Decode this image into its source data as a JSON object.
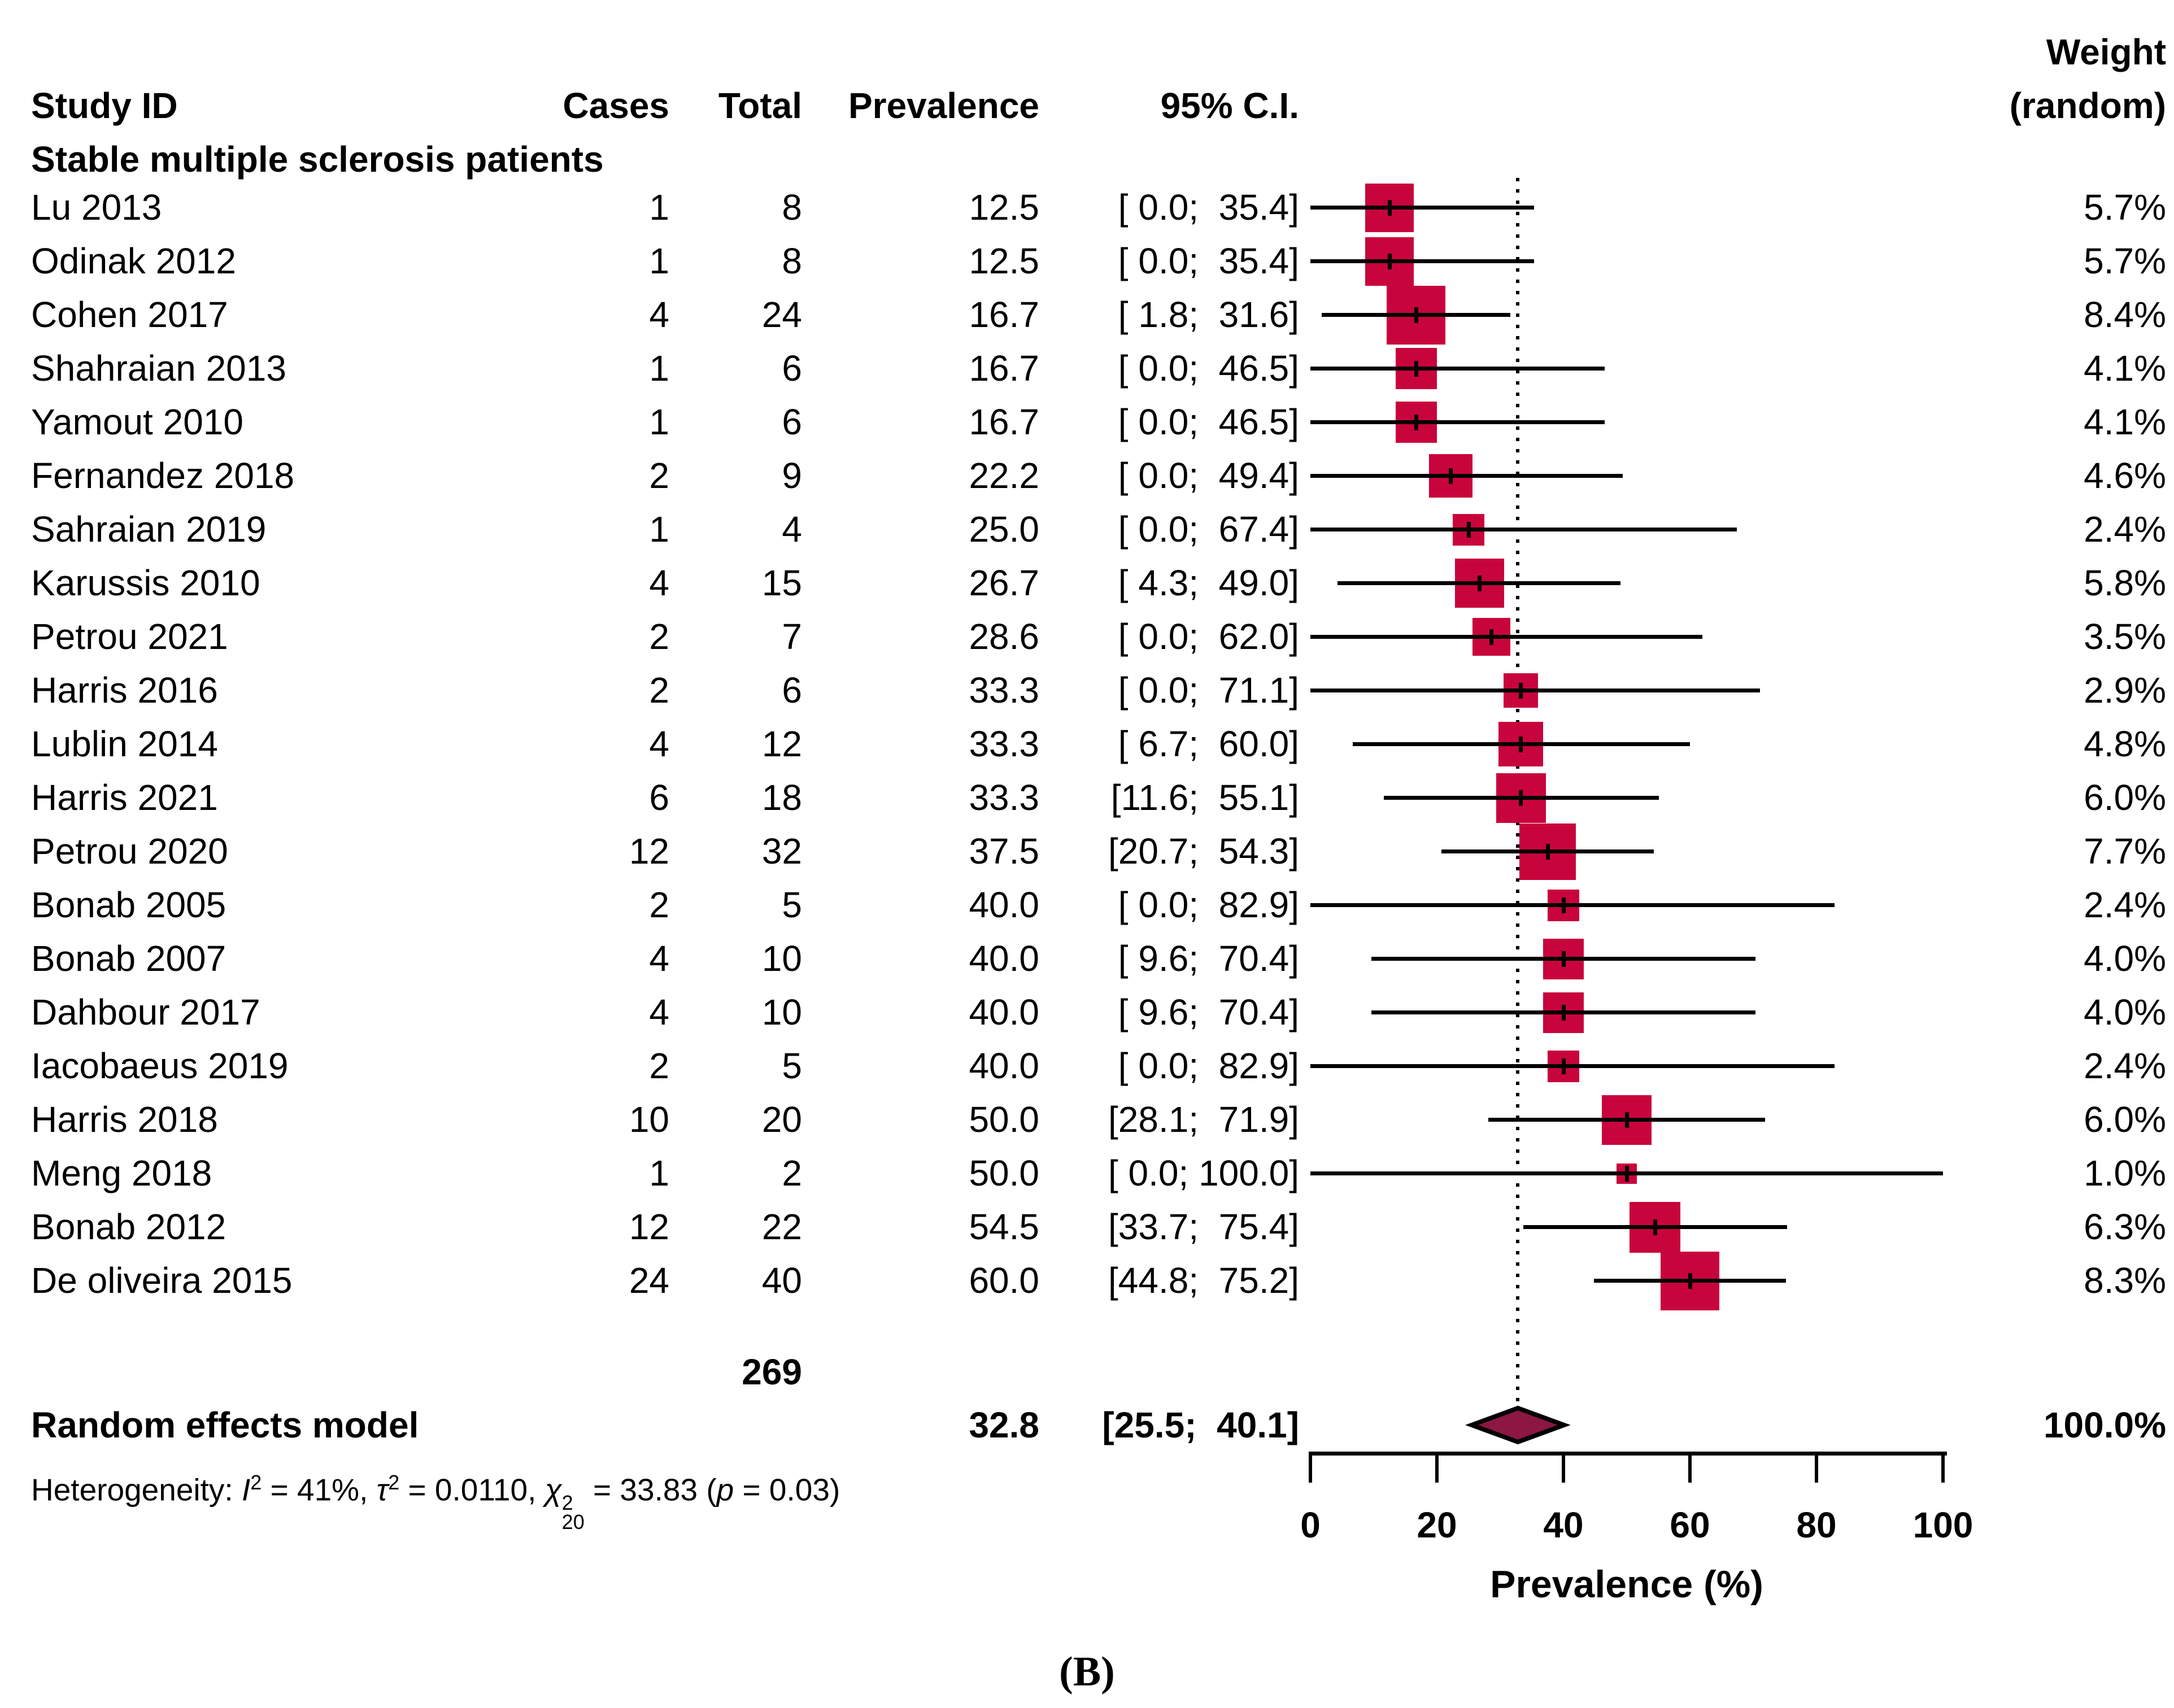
{
  "header": {
    "study_id": "Study ID",
    "cases": "Cases",
    "total": "Total",
    "prevalence": "Prevalence",
    "ci": "95% C.I.",
    "weight_line1": "Weight",
    "weight_line2": "(random)"
  },
  "group_label": "Stable multiple sclerosis patients",
  "chart_data": {
    "type": "forest",
    "title": "",
    "xlabel": "Prevalence (%)",
    "xlim": [
      0,
      100
    ],
    "x_ticks": [
      0,
      20,
      40,
      60,
      80,
      100
    ],
    "reference_line": 32.8,
    "marker_color": "#C8043C",
    "diamond_color": "#8B1742",
    "studies": [
      {
        "id": "Lu 2013",
        "cases": 1,
        "total": 8,
        "prevalence": 12.5,
        "prevalence_text": "12.5",
        "ci_lo": 0.0,
        "ci_hi": 35.4,
        "ci_text": "[ 0.0;  35.4]",
        "weight": 5.7,
        "weight_text": "5.7%"
      },
      {
        "id": "Odinak 2012",
        "cases": 1,
        "total": 8,
        "prevalence": 12.5,
        "prevalence_text": "12.5",
        "ci_lo": 0.0,
        "ci_hi": 35.4,
        "ci_text": "[ 0.0;  35.4]",
        "weight": 5.7,
        "weight_text": "5.7%"
      },
      {
        "id": "Cohen 2017",
        "cases": 4,
        "total": 24,
        "prevalence": 16.7,
        "prevalence_text": "16.7",
        "ci_lo": 1.8,
        "ci_hi": 31.6,
        "ci_text": "[ 1.8;  31.6]",
        "weight": 8.4,
        "weight_text": "8.4%"
      },
      {
        "id": "Shahraian 2013",
        "cases": 1,
        "total": 6,
        "prevalence": 16.7,
        "prevalence_text": "16.7",
        "ci_lo": 0.0,
        "ci_hi": 46.5,
        "ci_text": "[ 0.0;  46.5]",
        "weight": 4.1,
        "weight_text": "4.1%"
      },
      {
        "id": "Yamout 2010",
        "cases": 1,
        "total": 6,
        "prevalence": 16.7,
        "prevalence_text": "16.7",
        "ci_lo": 0.0,
        "ci_hi": 46.5,
        "ci_text": "[ 0.0;  46.5]",
        "weight": 4.1,
        "weight_text": "4.1%"
      },
      {
        "id": "Fernandez 2018",
        "cases": 2,
        "total": 9,
        "prevalence": 22.2,
        "prevalence_text": "22.2",
        "ci_lo": 0.0,
        "ci_hi": 49.4,
        "ci_text": "[ 0.0;  49.4]",
        "weight": 4.6,
        "weight_text": "4.6%"
      },
      {
        "id": "Sahraian 2019",
        "cases": 1,
        "total": 4,
        "prevalence": 25.0,
        "prevalence_text": "25.0",
        "ci_lo": 0.0,
        "ci_hi": 67.4,
        "ci_text": "[ 0.0;  67.4]",
        "weight": 2.4,
        "weight_text": "2.4%"
      },
      {
        "id": "Karussis 2010",
        "cases": 4,
        "total": 15,
        "prevalence": 26.7,
        "prevalence_text": "26.7",
        "ci_lo": 4.3,
        "ci_hi": 49.0,
        "ci_text": "[ 4.3;  49.0]",
        "weight": 5.8,
        "weight_text": "5.8%"
      },
      {
        "id": "Petrou 2021",
        "cases": 2,
        "total": 7,
        "prevalence": 28.6,
        "prevalence_text": "28.6",
        "ci_lo": 0.0,
        "ci_hi": 62.0,
        "ci_text": "[ 0.0;  62.0]",
        "weight": 3.5,
        "weight_text": "3.5%"
      },
      {
        "id": "Harris 2016",
        "cases": 2,
        "total": 6,
        "prevalence": 33.3,
        "prevalence_text": "33.3",
        "ci_lo": 0.0,
        "ci_hi": 71.1,
        "ci_text": "[ 0.0;  71.1]",
        "weight": 2.9,
        "weight_text": "2.9%"
      },
      {
        "id": "Lublin 2014",
        "cases": 4,
        "total": 12,
        "prevalence": 33.3,
        "prevalence_text": "33.3",
        "ci_lo": 6.7,
        "ci_hi": 60.0,
        "ci_text": "[ 6.7;  60.0]",
        "weight": 4.8,
        "weight_text": "4.8%"
      },
      {
        "id": "Harris 2021",
        "cases": 6,
        "total": 18,
        "prevalence": 33.3,
        "prevalence_text": "33.3",
        "ci_lo": 11.6,
        "ci_hi": 55.1,
        "ci_text": "[11.6;  55.1]",
        "weight": 6.0,
        "weight_text": "6.0%"
      },
      {
        "id": "Petrou 2020",
        "cases": 12,
        "total": 32,
        "prevalence": 37.5,
        "prevalence_text": "37.5",
        "ci_lo": 20.7,
        "ci_hi": 54.3,
        "ci_text": "[20.7;  54.3]",
        "weight": 7.7,
        "weight_text": "7.7%"
      },
      {
        "id": "Bonab 2005",
        "cases": 2,
        "total": 5,
        "prevalence": 40.0,
        "prevalence_text": "40.0",
        "ci_lo": 0.0,
        "ci_hi": 82.9,
        "ci_text": "[ 0.0;  82.9]",
        "weight": 2.4,
        "weight_text": "2.4%"
      },
      {
        "id": "Bonab 2007",
        "cases": 4,
        "total": 10,
        "prevalence": 40.0,
        "prevalence_text": "40.0",
        "ci_lo": 9.6,
        "ci_hi": 70.4,
        "ci_text": "[ 9.6;  70.4]",
        "weight": 4.0,
        "weight_text": "4.0%"
      },
      {
        "id": "Dahbour 2017",
        "cases": 4,
        "total": 10,
        "prevalence": 40.0,
        "prevalence_text": "40.0",
        "ci_lo": 9.6,
        "ci_hi": 70.4,
        "ci_text": "[ 9.6;  70.4]",
        "weight": 4.0,
        "weight_text": "4.0%"
      },
      {
        "id": "Iacobaeus 2019",
        "cases": 2,
        "total": 5,
        "prevalence": 40.0,
        "prevalence_text": "40.0",
        "ci_lo": 0.0,
        "ci_hi": 82.9,
        "ci_text": "[ 0.0;  82.9]",
        "weight": 2.4,
        "weight_text": "2.4%"
      },
      {
        "id": "Harris 2018",
        "cases": 10,
        "total": 20,
        "prevalence": 50.0,
        "prevalence_text": "50.0",
        "ci_lo": 28.1,
        "ci_hi": 71.9,
        "ci_text": "[28.1;  71.9]",
        "weight": 6.0,
        "weight_text": "6.0%"
      },
      {
        "id": "Meng 2018",
        "cases": 1,
        "total": 2,
        "prevalence": 50.0,
        "prevalence_text": "50.0",
        "ci_lo": 0.0,
        "ci_hi": 100.0,
        "ci_text": "[ 0.0; 100.0]",
        "weight": 1.0,
        "weight_text": "1.0%"
      },
      {
        "id": "Bonab 2012",
        "cases": 12,
        "total": 22,
        "prevalence": 54.5,
        "prevalence_text": "54.5",
        "ci_lo": 33.7,
        "ci_hi": 75.4,
        "ci_text": "[33.7;  75.4]",
        "weight": 6.3,
        "weight_text": "6.3%"
      },
      {
        "id": "De oliveira 2015",
        "cases": 24,
        "total": 40,
        "prevalence": 60.0,
        "prevalence_text": "60.0",
        "ci_lo": 44.8,
        "ci_hi": 75.2,
        "ci_text": "[44.8;  75.2]",
        "weight": 8.3,
        "weight_text": "8.3%"
      }
    ],
    "total_row": {
      "total": "269"
    },
    "summary": {
      "label": "Random effects model",
      "prevalence": 32.8,
      "prevalence_text": "32.8",
      "ci_lo": 25.5,
      "ci_hi": 40.1,
      "ci_text": "[25.5;  40.1]",
      "weight_text": "100.0%"
    },
    "heterogeneity": {
      "prefix": "Heterogeneity: ",
      "I": "I",
      "I_sup": "2",
      "seg1": " = 41%, ",
      "tau": "τ",
      "tau_sup": "2",
      "seg2": " = 0.0110, ",
      "chi": "χ",
      "chi_sup": "2",
      "chi_sub": "20",
      "seg3": " = 33.83 (",
      "p": "p",
      "seg4": " = 0.03)"
    },
    "caption": "(B)"
  }
}
